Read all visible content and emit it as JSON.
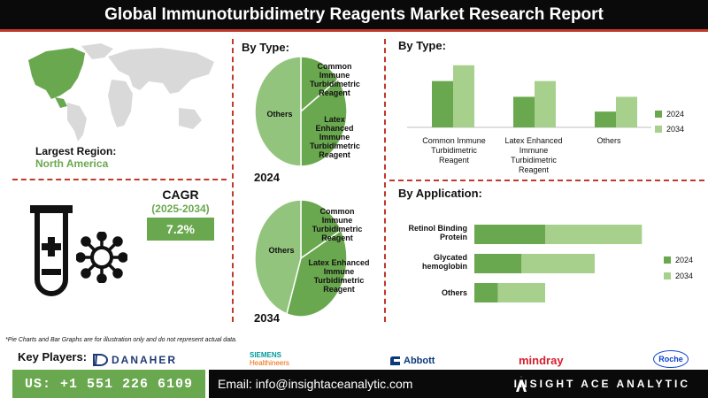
{
  "header": {
    "title": "Global Immunoturbidimetry Reagents Market Research Report"
  },
  "region": {
    "label": "Largest Region:",
    "value": "North America"
  },
  "cagr": {
    "label": "CAGR",
    "period": "(2025-2034)",
    "value": "7.2%"
  },
  "pie_section": {
    "heading": "By Type:"
  },
  "bar_section": {
    "heading": "By Type:"
  },
  "app_section": {
    "heading": "By Application:"
  },
  "note": "*Pie Charts and Bar Graphs are for illustration only and do not represent actual data.",
  "key_players": {
    "label": "Key Players:",
    "items": [
      "DANAHER",
      "SIEMENS",
      "Healthineers",
      "Abbott",
      "mindray",
      "Roche"
    ]
  },
  "footer": {
    "phone": "US: +1 551 226 6109",
    "email": "Email: info@insightaceanalytic.com",
    "brand": "INSIGHT ACE ANALYTIC"
  },
  "colors": {
    "dark_green": "#6aa84f",
    "light_green": "#a8d08d",
    "pie_green": "#93c47d",
    "accent_red": "#c0392b",
    "dark": "#0a0a0a"
  },
  "chart_data": [
    {
      "type": "pie",
      "year": "2024",
      "labels": [
        "Common Immune Turbidimetric Reagent",
        "Latex Enhanced Immune Turbidimetric Reagent",
        "Others"
      ],
      "values": [
        15,
        35,
        50
      ]
    },
    {
      "type": "pie",
      "year": "2034",
      "labels": [
        "Common Immune Turbidimetric Reagent",
        "Latex Enhanced Immune Turbidimetric Reagent",
        "Others"
      ],
      "values": [
        17,
        38,
        45
      ]
    },
    {
      "type": "bar",
      "categories": [
        "Common Immune Turbidimetric Reagent",
        "Latex Enhanced Immune Turbidimetric Reagent",
        "Others"
      ],
      "series": [
        {
          "name": "2024",
          "values": [
            47,
            31,
            16
          ]
        },
        {
          "name": "2034",
          "values": [
            63,
            47,
            31
          ]
        }
      ],
      "ylim": [
        0,
        70
      ],
      "legend": "right"
    },
    {
      "type": "bar",
      "orientation": "horizontal",
      "stacked": true,
      "categories": [
        "Retinol Binding Protein",
        "Glycated hemoglobin",
        "Others"
      ],
      "series": [
        {
          "name": "2024",
          "values": [
            30,
            20,
            10
          ]
        },
        {
          "name": "2034",
          "values": [
            41,
            31,
            20
          ]
        }
      ],
      "xlim": [
        0,
        75
      ],
      "legend": "right"
    }
  ]
}
